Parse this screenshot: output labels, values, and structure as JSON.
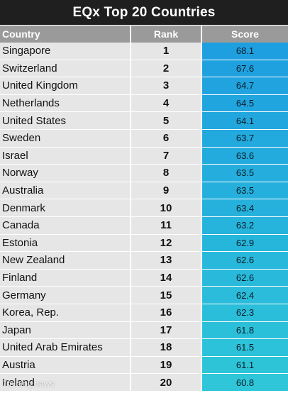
{
  "title": "EQx Top 20 Countries",
  "headers": {
    "country": "Country",
    "rank": "Rank",
    "score": "Score"
  },
  "rows": [
    {
      "country": "Singapore",
      "rank": "1",
      "score": "68.1"
    },
    {
      "country": "Switzerland",
      "rank": "2",
      "score": "67.6"
    },
    {
      "country": "United Kingdom",
      "rank": "3",
      "score": "64.7"
    },
    {
      "country": "Netherlands",
      "rank": "4",
      "score": "64.5"
    },
    {
      "country": "United States",
      "rank": "5",
      "score": "64.1"
    },
    {
      "country": "Sweden",
      "rank": "6",
      "score": "63.7"
    },
    {
      "country": "Israel",
      "rank": "7",
      "score": "63.6"
    },
    {
      "country": "Norway",
      "rank": "8",
      "score": "63.5"
    },
    {
      "country": "Australia",
      "rank": "9",
      "score": "63.5"
    },
    {
      "country": "Denmark",
      "rank": "10",
      "score": "63.4"
    },
    {
      "country": "Canada",
      "rank": "11",
      "score": "63.2"
    },
    {
      "country": "Estonia",
      "rank": "12",
      "score": "62.9"
    },
    {
      "country": "New Zealand",
      "rank": "13",
      "score": "62.6"
    },
    {
      "country": "Finland",
      "rank": "14",
      "score": "62.6"
    },
    {
      "country": "Germany",
      "rank": "15",
      "score": "62.4"
    },
    {
      "country": "Korea, Rep.",
      "rank": "16",
      "score": "62.3"
    },
    {
      "country": "Japan",
      "rank": "17",
      "score": "61.8"
    },
    {
      "country": "United Arab Emirates",
      "rank": "18",
      "score": "61.5"
    },
    {
      "country": "Austria",
      "rank": "19",
      "score": "61.1"
    },
    {
      "country": "Ireland",
      "rank": "20",
      "score": "60.8"
    }
  ],
  "watermark": "7mining.news",
  "colors": {
    "title_bg": "#1f1f1f",
    "header_bg": "#9a9a9a",
    "row_bg": "#e6e6e6",
    "score_high": "#1e9fe0",
    "score_low": "#2ec6d8"
  }
}
